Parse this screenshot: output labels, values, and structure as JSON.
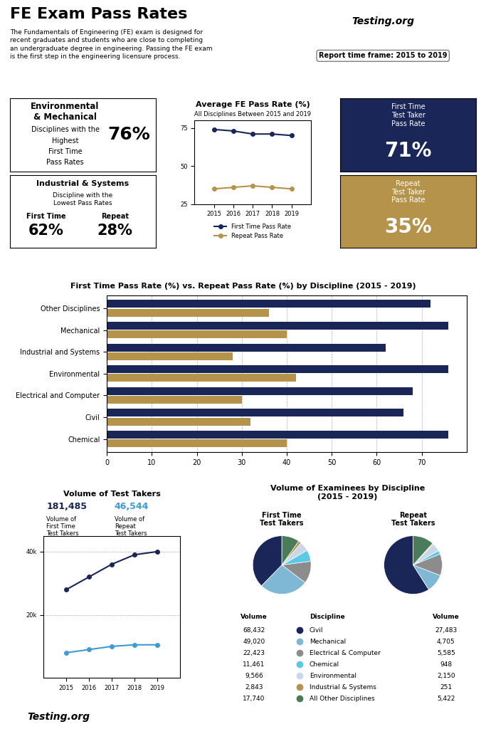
{
  "chart_data": [
    {
      "type": "text",
      "title": "FE Exam Pass Rates",
      "subtitle": "The Fundamentals of Engineering (FE) exam is designed for\nrecent graduates and students who are close to completing\nan undergraduate degree in engineering. Passing the FE exam\nis the first step in the engineering licensure process.",
      "annotations": [
        "Report time frame: 2015 to 2019",
        "Testing.org"
      ]
    },
    {
      "type": "text",
      "annotations": [
        "Environmental\n& Mechanical",
        "Disciplines with the",
        "Highest",
        "First Time",
        "Pass Rates",
        "76%"
      ]
    },
    {
      "type": "text",
      "annotations": [
        "Industrial & Systems",
        "Discipline with the\nLowest Pass Rates",
        "First Time",
        "Repeat",
        "62%",
        "28%"
      ]
    },
    {
      "type": "line",
      "title": "Average FE Pass Rate (%)",
      "subtitle": "All Disciplines Between 2015 and 2019",
      "x": [
        2015,
        2016,
        2017,
        2018,
        2019
      ],
      "xlim": [
        2014,
        2020
      ],
      "xticks": [
        2015,
        2016,
        2017,
        2018,
        2019
      ],
      "ylim": [
        25,
        80
      ],
      "yticks": [
        25,
        50,
        75
      ],
      "grid": false,
      "legend": "lower center",
      "series": [
        {
          "name": "First Time Pass Rate",
          "color": "#1a2657",
          "marker": "o",
          "values": [
            74,
            73,
            71,
            71,
            70
          ]
        },
        {
          "name": "Repeat Pass Rate",
          "color": "#b5934a",
          "marker": "o",
          "values": [
            35,
            36,
            37,
            36,
            35
          ]
        }
      ]
    },
    {
      "type": "text",
      "color": "#1a2657",
      "annotations": [
        "First Time\nTest Taker\nPass Rate",
        "71%"
      ]
    },
    {
      "type": "text",
      "color": "#b5934a",
      "annotations": [
        "Repeat\nTest Taker\nPass Rate",
        "35%"
      ]
    },
    {
      "type": "bar",
      "orientation": "horizontal",
      "title": "First Time Pass Rate (%) vs. Repeat Pass Rate (%) by Discipline (2015 - 2019)",
      "categories": [
        "Chemical",
        "Civil",
        "Electrical and Computer",
        "Environmental",
        "Industrial and Systems",
        "Mechanical",
        "Other Disciplines"
      ],
      "xlim": [
        0,
        80
      ],
      "xticks": [
        0,
        10,
        20,
        30,
        40,
        50,
        60,
        70
      ],
      "grid": true,
      "series": [
        {
          "color": "#1a2657",
          "values": [
            76,
            66,
            68,
            76,
            62,
            76,
            72
          ]
        },
        {
          "color": "#b5934a",
          "values": [
            40,
            32,
            30,
            42,
            28,
            40,
            36
          ]
        }
      ]
    },
    {
      "type": "line",
      "title": "Volume of Test Takers",
      "x": [
        2015,
        2016,
        2017,
        2018,
        2019
      ],
      "xlim": [
        2014,
        2020
      ],
      "xticks": [
        2015,
        2016,
        2017,
        2018,
        2019
      ],
      "ylim": [
        0,
        45000
      ],
      "yticks": [
        {
          "value": 20000,
          "label": "20k"
        },
        {
          "value": 40000,
          "label": "40k"
        }
      ],
      "grid": true,
      "annotations": [
        "181,485",
        "Volume of\nFirst Time\nTest Takers",
        "46,544",
        "Volume of\nRepeat\nTest Takers"
      ],
      "series": [
        {
          "color": "#1a2657",
          "marker": "o",
          "values": [
            28000,
            32000,
            36000,
            39000,
            40000
          ]
        },
        {
          "color": "#3d9bd4",
          "marker": "o",
          "values": [
            8000,
            9000,
            10000,
            10500,
            10500
          ]
        }
      ]
    },
    {
      "type": "pie",
      "title": "Volume of Examinees by Discipline\n(2015 - 2019)",
      "categories": [
        "Civil",
        "Mechanical",
        "Electrical & Computer",
        "Chemical",
        "Environmental",
        "Industrial & Systems",
        "All Other Disciplines"
      ],
      "colors": [
        "#1a2657",
        "#7fb8d4",
        "#8c8c8c",
        "#5bc8e8",
        "#c8d8e8",
        "#b5934a",
        "#4a7c59"
      ],
      "annotations": [
        "Volume",
        "Discipline",
        "Volume"
      ],
      "series": [
        {
          "name": "First Time\nTest Takers",
          "values": [
            68432,
            49020,
            22423,
            11461,
            9566,
            2843,
            17740
          ],
          "value_labels": [
            "68,432",
            "49,020",
            "22,423",
            "11,461",
            "9,566",
            "2,843",
            "17,740"
          ]
        },
        {
          "name": "Repeat\nTest Takers",
          "values": [
            27483,
            4705,
            5585,
            948,
            2150,
            251,
            5422
          ],
          "value_labels": [
            "27,483",
            "4,705",
            "5,585",
            "948",
            "2,150",
            "251",
            "5,422"
          ]
        }
      ]
    },
    {
      "type": "text",
      "annotations": [
        "Testing.org"
      ]
    }
  ]
}
